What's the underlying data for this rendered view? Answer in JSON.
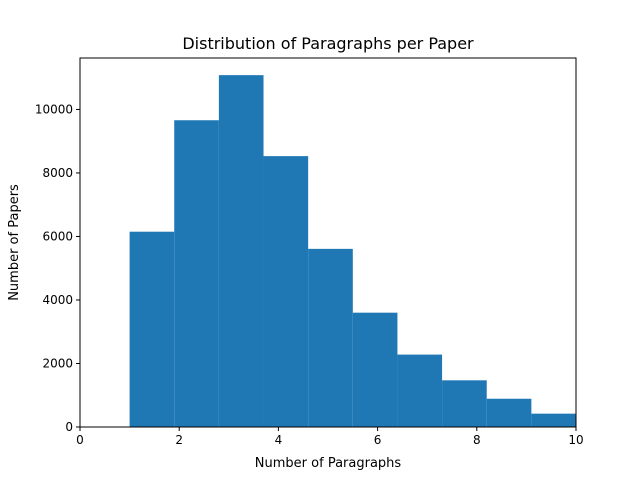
{
  "chart_data": {
    "type": "bar",
    "title": "Distribution of Paragraphs per Paper",
    "xlabel": "Number of Paragraphs",
    "ylabel": "Number of Papers",
    "xlim": [
      0,
      10
    ],
    "ylim": [
      0,
      11620
    ],
    "xticks": [
      "0",
      "2",
      "4",
      "6",
      "8",
      "10"
    ],
    "yticks": [
      "0",
      "2000",
      "4000",
      "6000",
      "8000",
      "10000"
    ],
    "bins": [
      {
        "x0": 1.0,
        "x1": 1.9,
        "value": 6150
      },
      {
        "x0": 1.9,
        "x1": 2.8,
        "value": 9660
      },
      {
        "x0": 2.8,
        "x1": 3.7,
        "value": 11080
      },
      {
        "x0": 3.7,
        "x1": 4.6,
        "value": 8530
      },
      {
        "x0": 4.6,
        "x1": 5.5,
        "value": 5610
      },
      {
        "x0": 5.5,
        "x1": 6.4,
        "value": 3600
      },
      {
        "x0": 6.4,
        "x1": 7.3,
        "value": 2280
      },
      {
        "x0": 7.3,
        "x1": 8.2,
        "value": 1470
      },
      {
        "x0": 8.2,
        "x1": 9.1,
        "value": 890
      },
      {
        "x0": 9.1,
        "x1": 10.0,
        "value": 420
      }
    ],
    "bar_color": "#1f77b4",
    "grid": false,
    "legend": "none"
  }
}
